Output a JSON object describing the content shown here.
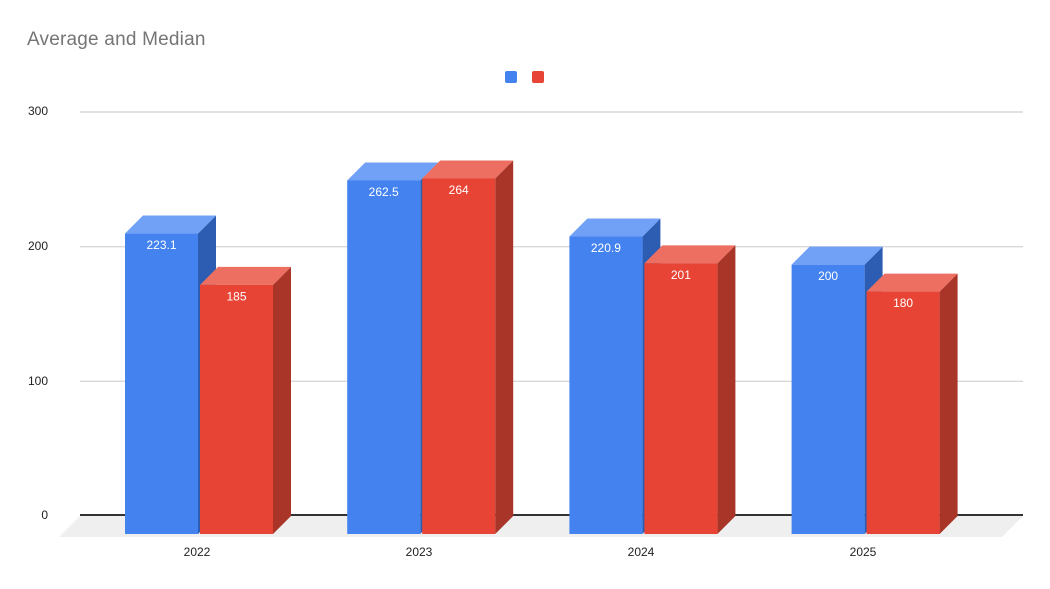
{
  "title": "Average and Median",
  "legend": {
    "items": [
      {
        "swatch": "blue-square"
      },
      {
        "swatch": "red-square"
      }
    ]
  },
  "chart_data": {
    "type": "bar",
    "style": "3d-column-grouped",
    "title": "Average and Median",
    "categories": [
      "2022",
      "2023",
      "2024",
      "2025"
    ],
    "series": [
      {
        "name": "",
        "color": "#4483EF",
        "color_top": "#71A1F6",
        "color_side": "#2D5DB3",
        "values": [
          223.1,
          262.5,
          220.9,
          200
        ],
        "labels": [
          "223.1",
          "262.5",
          "220.9",
          "200"
        ]
      },
      {
        "name": "",
        "color": "#E74435",
        "color_top": "#EC6F61",
        "color_side": "#A83528",
        "values": [
          185,
          264,
          201,
          180
        ],
        "labels": [
          "185",
          "264",
          "201",
          "180"
        ]
      }
    ],
    "xlabel": "",
    "ylabel": "",
    "ylim": [
      0,
      300
    ],
    "yticks": [
      0,
      100,
      200,
      300
    ],
    "ytick_labels_desc": [
      "300",
      "200",
      "100",
      "0"
    ],
    "gridlines": true,
    "legend_position": "top-center",
    "value_label_color": "#ffffff",
    "gridline_color": "#d9d9d9",
    "baseline_color": "#333333",
    "floor_color": "#efefef",
    "axis_text_color": "#222222",
    "title_color": "#757575",
    "background_color": "#ffffff"
  }
}
